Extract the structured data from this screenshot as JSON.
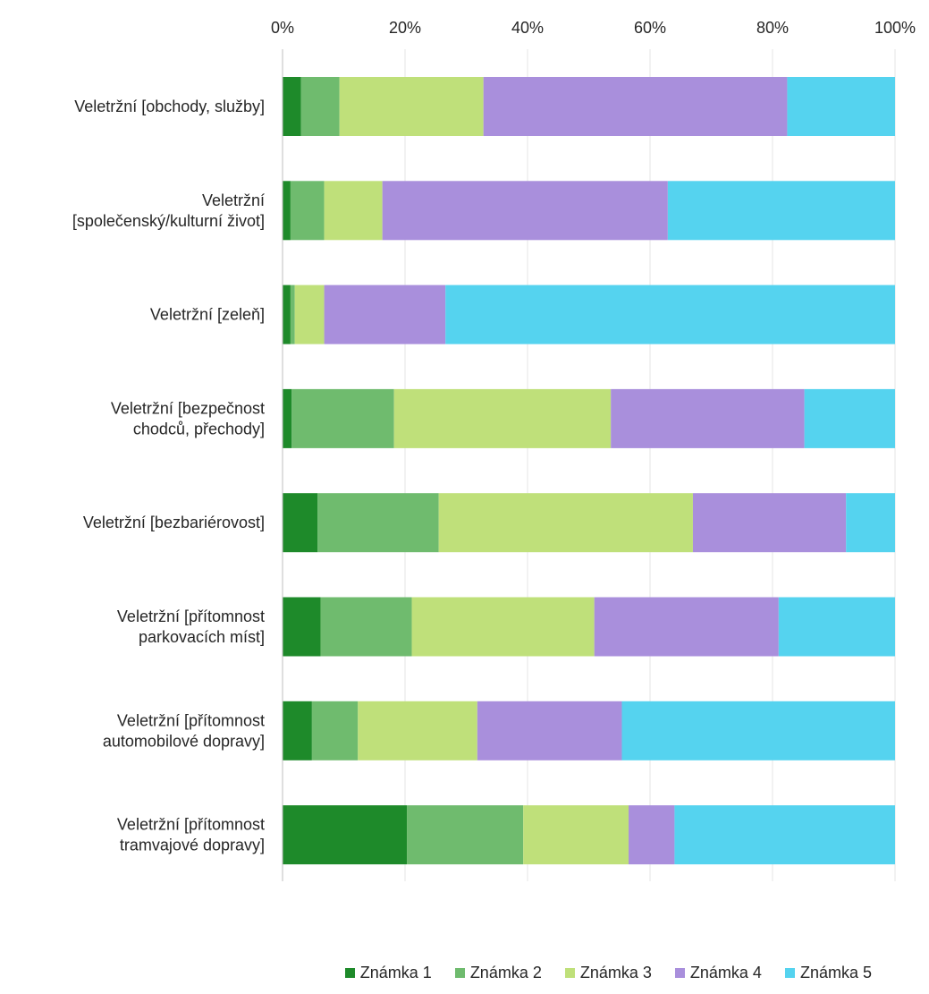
{
  "chart_data": {
    "type": "bar",
    "orientation": "horizontal",
    "stacked": "percent",
    "xlim": [
      0,
      100
    ],
    "x_ticks": [
      "0%",
      "20%",
      "40%",
      "60%",
      "80%",
      "100%"
    ],
    "x_axis_position": "top",
    "grid": true,
    "legend_position": "bottom",
    "categories": [
      [
        "Veletržní [obchody, služby]"
      ],
      [
        "Veletržní",
        "[společenský/kulturní život]"
      ],
      [
        "Veletržní [zeleň]"
      ],
      [
        "Veletržní [bezpečnost",
        "chodců, přechody]"
      ],
      [
        "Veletržní [bezbariérovost]"
      ],
      [
        "Veletržní [přítomnost",
        "parkovacích míst]"
      ],
      [
        "Veletržní [přítomnost",
        "automobilové dopravy]"
      ],
      [
        "Veletržní [přítomnost",
        "tramvajové dopravy]"
      ]
    ],
    "series": [
      {
        "name": "Známka 1",
        "color": "#1e8a2a",
        "values": [
          3,
          1.3,
          1.3,
          1.5,
          5.7,
          6.2,
          4.8,
          20.3
        ]
      },
      {
        "name": "Známka 2",
        "color": "#6fbb6e",
        "values": [
          6.3,
          5.5,
          0.7,
          16.7,
          19.8,
          14.9,
          7.5,
          19.0
        ]
      },
      {
        "name": "Známka 3",
        "color": "#bfe07a",
        "values": [
          23.5,
          9.5,
          4.8,
          35.4,
          41.5,
          29.8,
          19.5,
          17.2
        ]
      },
      {
        "name": "Známka 4",
        "color": "#a98fdc",
        "values": [
          49.6,
          46.6,
          19.8,
          31.6,
          25.0,
          30.1,
          23.6,
          7.5
        ]
      },
      {
        "name": "Známka 5",
        "color": "#55d3ef",
        "values": [
          17.6,
          37.1,
          73.4,
          14.8,
          8.0,
          19.0,
          44.6,
          36.0
        ]
      }
    ]
  }
}
